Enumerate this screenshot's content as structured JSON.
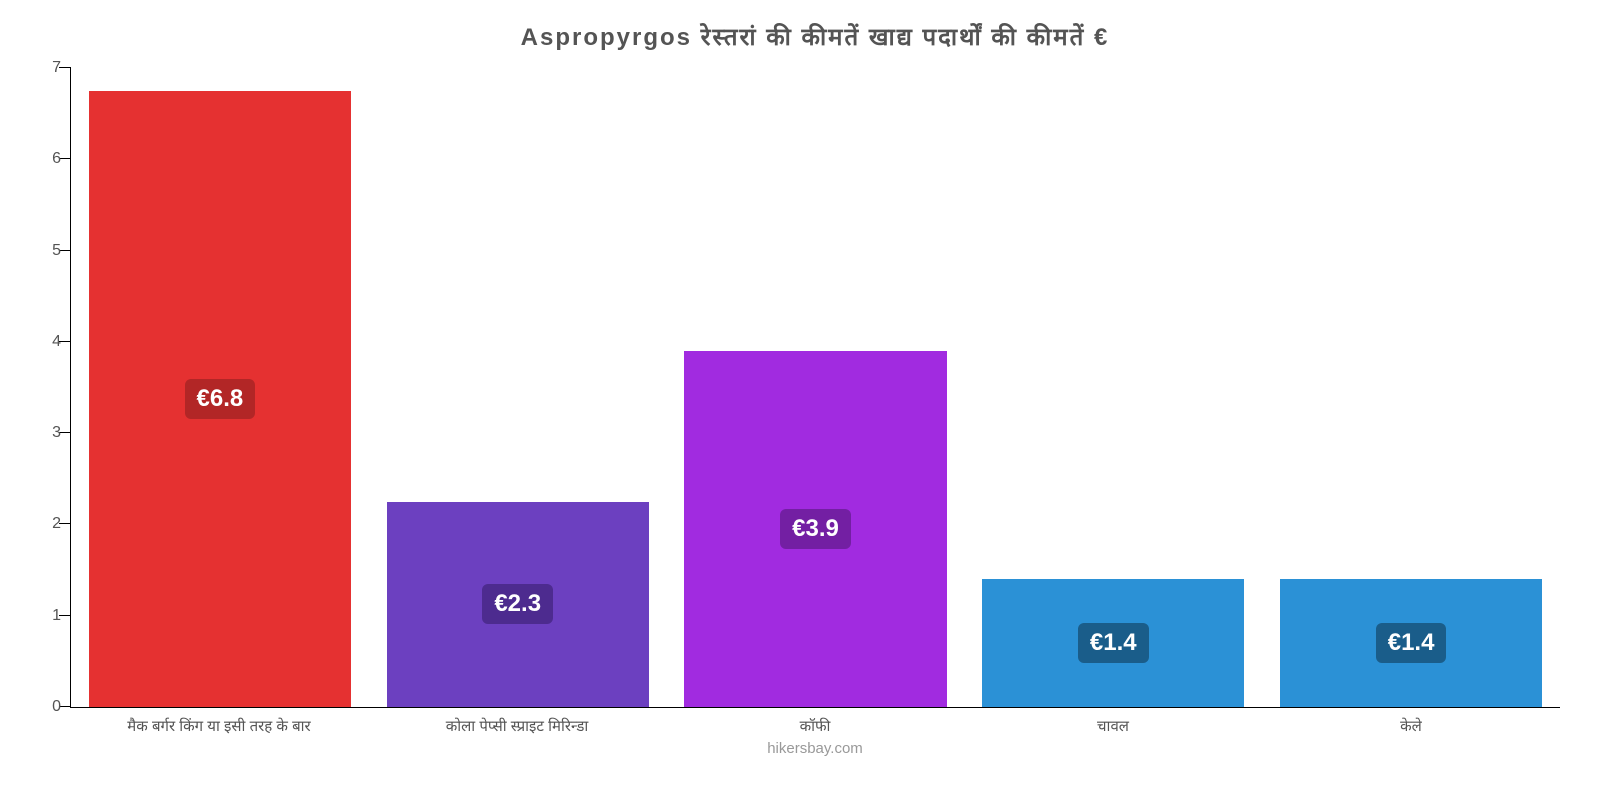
{
  "chart": {
    "type": "bar",
    "title": "Aspropyrgos रेस्तरां    की    कीमतें    खाद्य    पदार्थों    की    कीमतें    €",
    "title_fontsize": 24,
    "title_color": "#545454",
    "background_color": "#ffffff",
    "axis_color": "#000000",
    "label_color": "#545454",
    "ylim": [
      0,
      7
    ],
    "ytick_step": 1,
    "yticks": [
      "0",
      "1",
      "2",
      "3",
      "4",
      "5",
      "6",
      "7"
    ],
    "bar_width_ratio": 0.88,
    "categories": [
      "मैक बर्गर किंग या इसी तरह के बार",
      "कोला पेप्सी स्प्राइट मिरिन्डा",
      "कॉफी",
      "चावल",
      "केले"
    ],
    "values": [
      6.75,
      2.25,
      3.9,
      1.4,
      1.4
    ],
    "value_labels": [
      "€6.8",
      "€2.3",
      "€3.9",
      "€1.4",
      "€1.4"
    ],
    "bar_colors": [
      "#e53131",
      "#6c40c0",
      "#a12be0",
      "#2b91d6",
      "#2b91d6"
    ],
    "badge_colors": [
      "#b22626",
      "#4d2b8f",
      "#731fa3",
      "#1a5d8a",
      "#1a5d8a"
    ],
    "badge_text_color": "#ffffff",
    "badge_fontsize": 24,
    "x_label_fontsize": 15,
    "y_label_fontsize": 16,
    "footer": "hikersbay.com",
    "footer_color": "#999999"
  }
}
